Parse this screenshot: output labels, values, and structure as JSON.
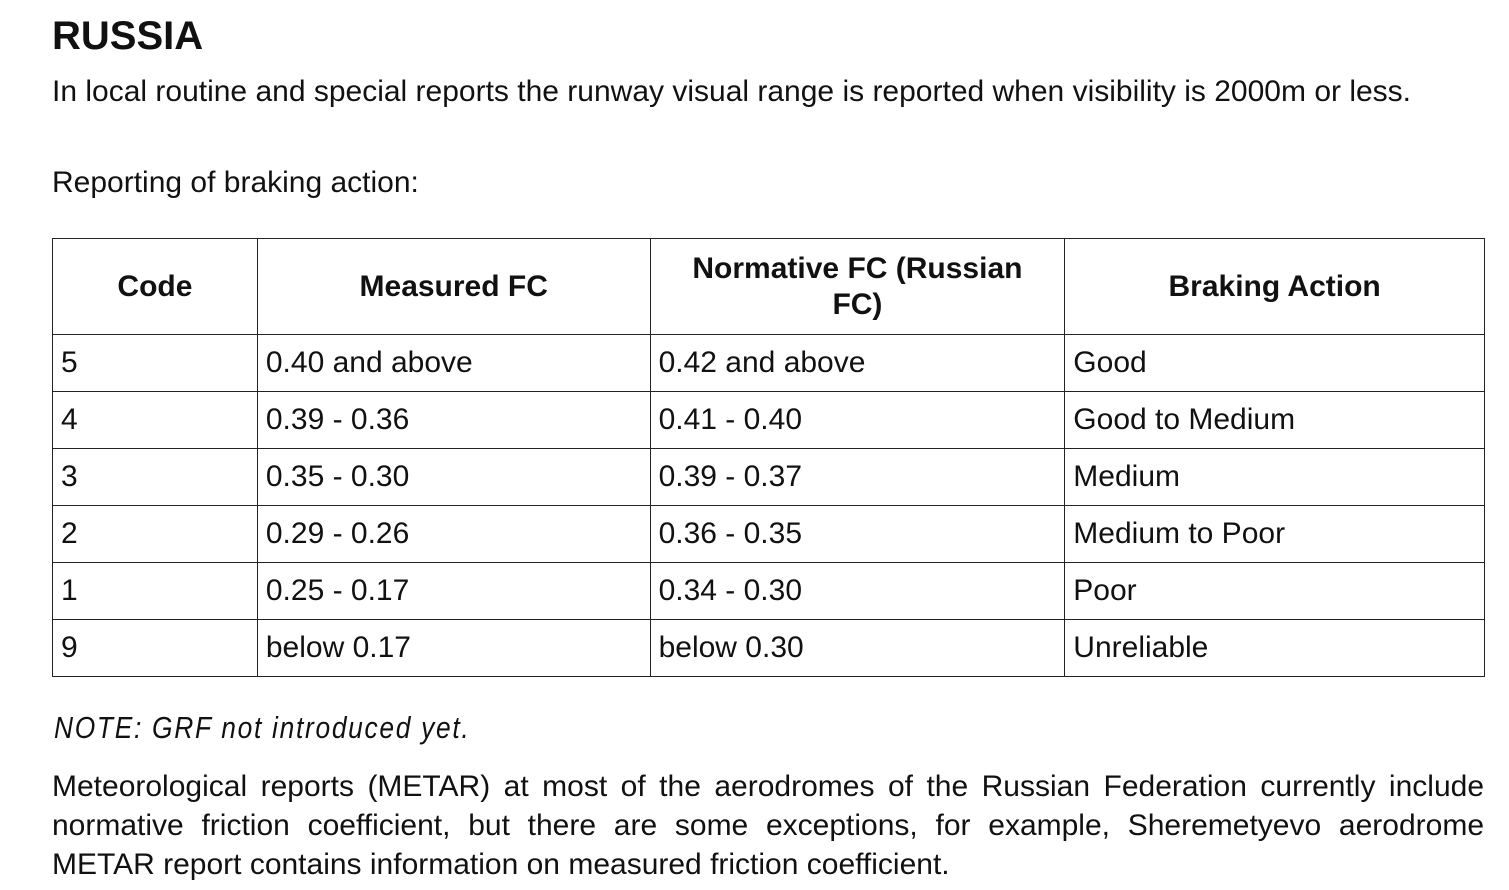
{
  "title": "RUSSIA",
  "intro": "In local routine and special reports the runway visual range is reported when visibility is 2000m or less.",
  "braking_label": "Reporting of braking action:",
  "table": {
    "headers": [
      "Code",
      "Measured FC",
      "Normative FC (Russian FC)",
      "Braking Action"
    ],
    "rows": [
      [
        "5",
        "0.40 and above",
        "0.42 and above",
        "Good"
      ],
      [
        "4",
        "0.39 - 0.36",
        "0.41 - 0.40",
        "Good to Medium"
      ],
      [
        "3",
        "0.35 - 0.30",
        "0.39 - 0.37",
        "Medium"
      ],
      [
        "2",
        "0.29 - 0.26",
        "0.36 - 0.35",
        "Medium to Poor"
      ],
      [
        "1",
        "0.25 - 0.17",
        "0.34 - 0.30",
        "Poor"
      ],
      [
        "9",
        "below 0.17",
        "below 0.30",
        "Unreliable"
      ]
    ]
  },
  "note": "NOTE: GRF not introduced yet.",
  "closing": "Meteorological reports (METAR) at most of the aerodromes of the Russian Federation currently include normative friction coefficient, but there are some exceptions, for example, Sheremetyevo aerodrome METAR report contains information on measured friction coefficient."
}
